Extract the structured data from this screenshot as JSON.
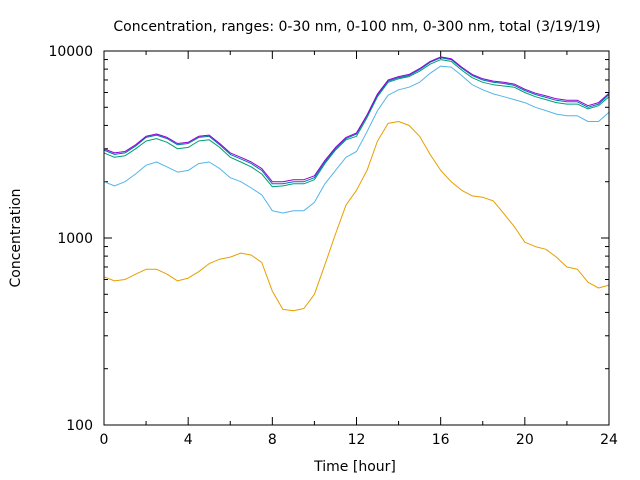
{
  "chart_data": {
    "type": "line",
    "title": "Concentration, ranges: 0-30 nm, 0-100 nm, 0-300 nm, total (3/19/19)",
    "xlabel": "Time [hour]",
    "ylabel": "Concentration",
    "xlim": [
      0,
      24
    ],
    "ylim": [
      100,
      10000
    ],
    "yscale": "log",
    "grid": false,
    "x_ticks": [
      "0",
      "4",
      "8",
      "12",
      "16",
      "20",
      "24"
    ],
    "y_ticks": [
      "100",
      "1000",
      "10000"
    ],
    "x": [
      0,
      0.5,
      1,
      1.5,
      2,
      2.5,
      3,
      3.5,
      4,
      4.5,
      5,
      5.5,
      6,
      6.5,
      7,
      7.5,
      8,
      8.5,
      9,
      9.5,
      10,
      10.5,
      11,
      11.5,
      12,
      12.5,
      13,
      13.5,
      14,
      14.5,
      15,
      15.5,
      16,
      16.5,
      17,
      17.5,
      18,
      18.5,
      19,
      19.5,
      20,
      20.5,
      21,
      21.5,
      22,
      22.5,
      23,
      23.5,
      24
    ],
    "series": [
      {
        "color": "#e69f00",
        "values": [
          620,
          590,
          600,
          640,
          680,
          680,
          640,
          590,
          610,
          660,
          730,
          770,
          790,
          830,
          810,
          740,
          520,
          415,
          408,
          420,
          500,
          720,
          1050,
          1500,
          1800,
          2300,
          3300,
          4100,
          4200,
          4000,
          3500,
          2800,
          2300,
          2000,
          1800,
          1680,
          1650,
          1580,
          1350,
          1150,
          950,
          900,
          870,
          790,
          700,
          680,
          580,
          540,
          560
        ]
      },
      {
        "color": "#56b4e9",
        "values": [
          2000,
          1900,
          2000,
          2200,
          2450,
          2550,
          2400,
          2250,
          2300,
          2500,
          2550,
          2350,
          2100,
          2000,
          1850,
          1700,
          1400,
          1360,
          1400,
          1400,
          1550,
          1950,
          2300,
          2700,
          2900,
          3700,
          4800,
          5800,
          6200,
          6400,
          6800,
          7600,
          8300,
          8200,
          7400,
          6600,
          6200,
          5900,
          5700,
          5500,
          5300,
          5000,
          4800,
          4600,
          4500,
          4500,
          4200,
          4200,
          4700
        ]
      },
      {
        "color": "#009e73",
        "values": [
          2850,
          2700,
          2750,
          3000,
          3300,
          3400,
          3250,
          3000,
          3050,
          3300,
          3350,
          3050,
          2700,
          2550,
          2400,
          2200,
          1880,
          1900,
          1950,
          1950,
          2050,
          2500,
          2950,
          3350,
          3500,
          4400,
          5700,
          6800,
          7100,
          7300,
          7800,
          8500,
          9000,
          8800,
          7900,
          7200,
          6800,
          6600,
          6500,
          6400,
          6000,
          5700,
          5500,
          5300,
          5200,
          5200,
          4900,
          5100,
          5700
        ]
      },
      {
        "color": "#0072b2",
        "values": [
          2950,
          2800,
          2850,
          3100,
          3450,
          3550,
          3400,
          3150,
          3200,
          3450,
          3500,
          3150,
          2800,
          2650,
          2500,
          2300,
          1950,
          1950,
          2000,
          2000,
          2100,
          2550,
          3000,
          3400,
          3600,
          4500,
          5800,
          6900,
          7200,
          7400,
          7950,
          8700,
          9200,
          9000,
          8100,
          7400,
          7000,
          6800,
          6700,
          6550,
          6150,
          5850,
          5650,
          5450,
          5350,
          5350,
          5000,
          5200,
          5850
        ]
      },
      {
        "color": "#9400d3",
        "values": [
          3000,
          2850,
          2900,
          3150,
          3500,
          3600,
          3450,
          3200,
          3250,
          3500,
          3550,
          3200,
          2850,
          2700,
          2550,
          2350,
          2000,
          2000,
          2050,
          2050,
          2150,
          2600,
          3050,
          3450,
          3650,
          4550,
          5900,
          7000,
          7300,
          7500,
          8050,
          8800,
          9300,
          9100,
          8200,
          7500,
          7100,
          6900,
          6800,
          6650,
          6250,
          5950,
          5750,
          5550,
          5450,
          5450,
          5100,
          5300,
          5950
        ]
      }
    ]
  }
}
